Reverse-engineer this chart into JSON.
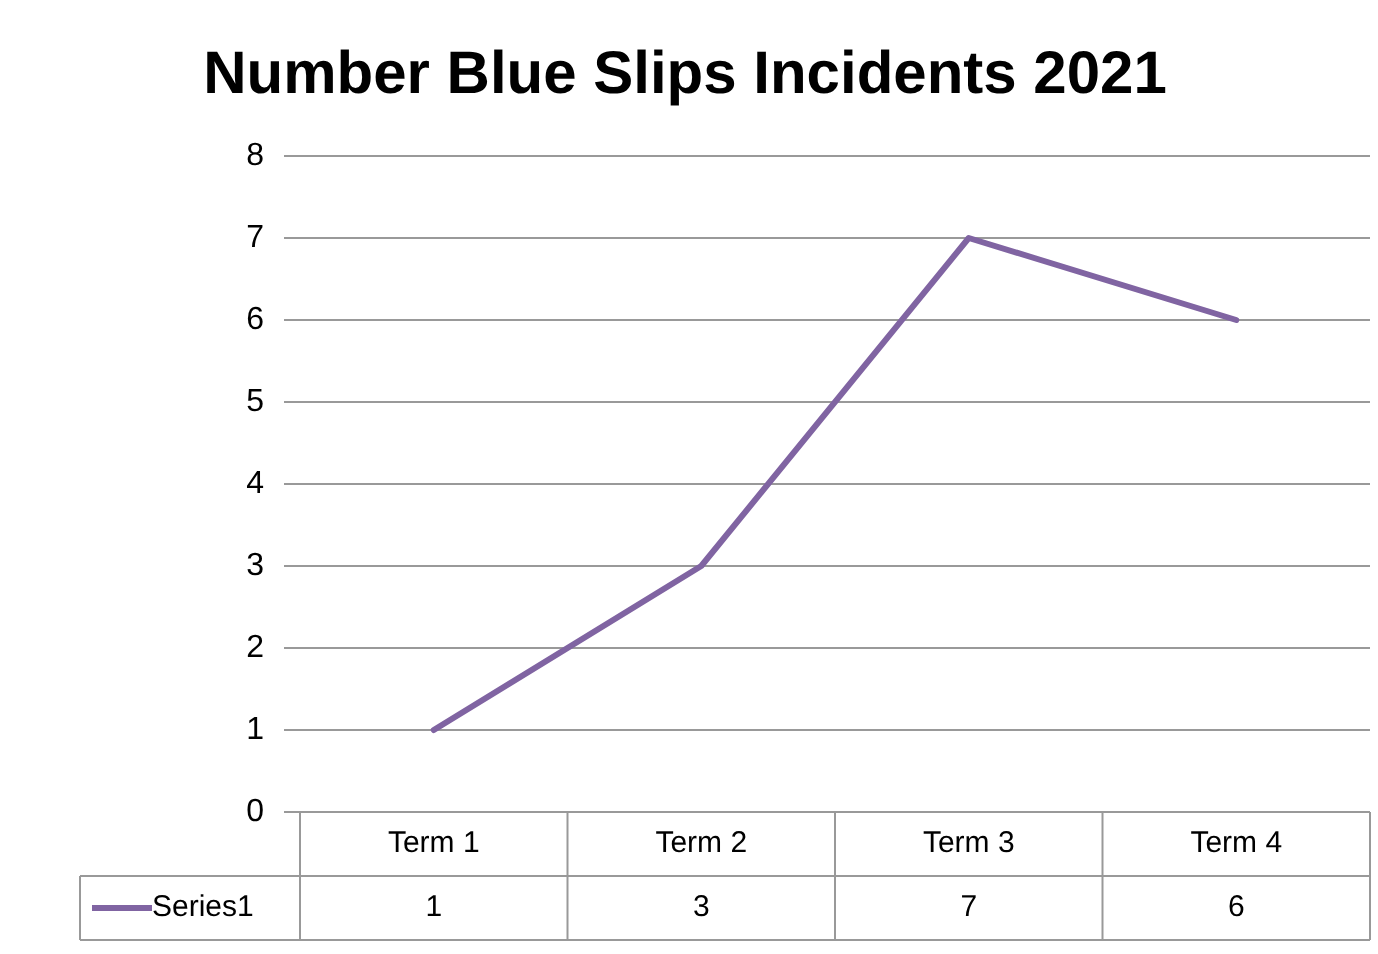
{
  "chart_data": {
    "type": "line",
    "title": "Number Blue Slips Incidents 2021",
    "categories": [
      "Term 1",
      "Term 2",
      "Term 3",
      "Term 4"
    ],
    "series": [
      {
        "name": "Series1",
        "color": "#8064a2",
        "values": [
          1,
          3,
          7,
          6
        ]
      }
    ],
    "ylim": [
      0,
      8
    ],
    "yticks": [
      0,
      1,
      2,
      3,
      4,
      5,
      6,
      7,
      8
    ],
    "grid": "y",
    "marker": "none",
    "line_style": "solid",
    "legend": "bottom left",
    "data_labels": true
  }
}
